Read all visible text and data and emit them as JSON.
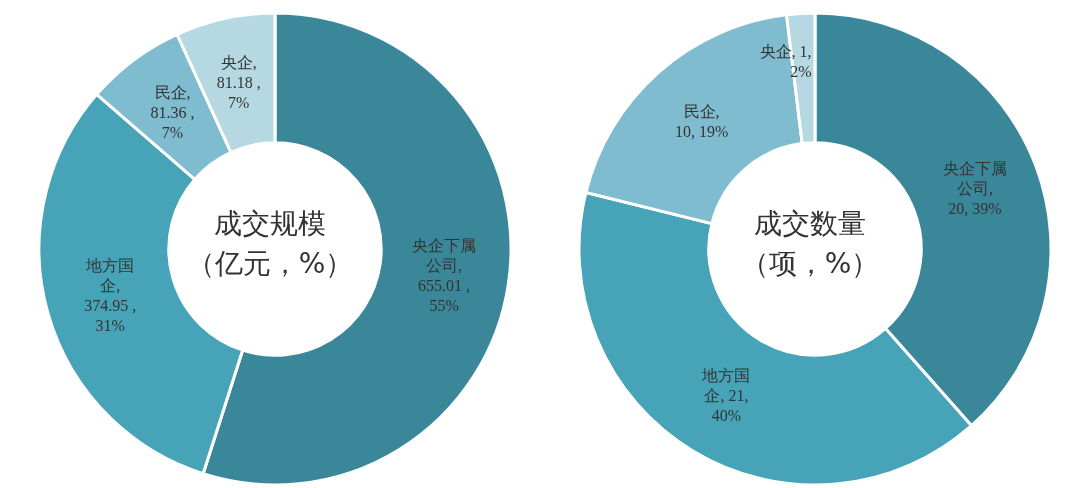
{
  "chart_data": [
    {
      "type": "donut",
      "title": "成交规模",
      "subtitle": "（亿元，%）",
      "categories": [
        "央企下属公司",
        "地方国企",
        "民企",
        "央企"
      ],
      "values": [
        655.01,
        374.95,
        81.36,
        81.18
      ],
      "value_labels": [
        ", 655.01 , 55%",
        ", 374.95 , 31%",
        ", 81.36 , 7%",
        ", 81.18 , 7%"
      ],
      "colors": [
        "#3a8799",
        "#46a3b8",
        "#7fbcd0",
        "#b5d8e3"
      ]
    },
    {
      "type": "donut",
      "title": "成交数量",
      "subtitle": "（项，%）",
      "categories": [
        "央企下属公司",
        "地方国企",
        "民企",
        "央企"
      ],
      "values": [
        20,
        21,
        10,
        1
      ],
      "value_labels": [
        ", 20, 39%",
        ", 21, 40%",
        ", 10, 19%",
        ", 1, 2%"
      ],
      "colors": [
        "#3a8799",
        "#46a3b8",
        "#7fbcd0",
        "#b5d8e3"
      ]
    }
  ]
}
